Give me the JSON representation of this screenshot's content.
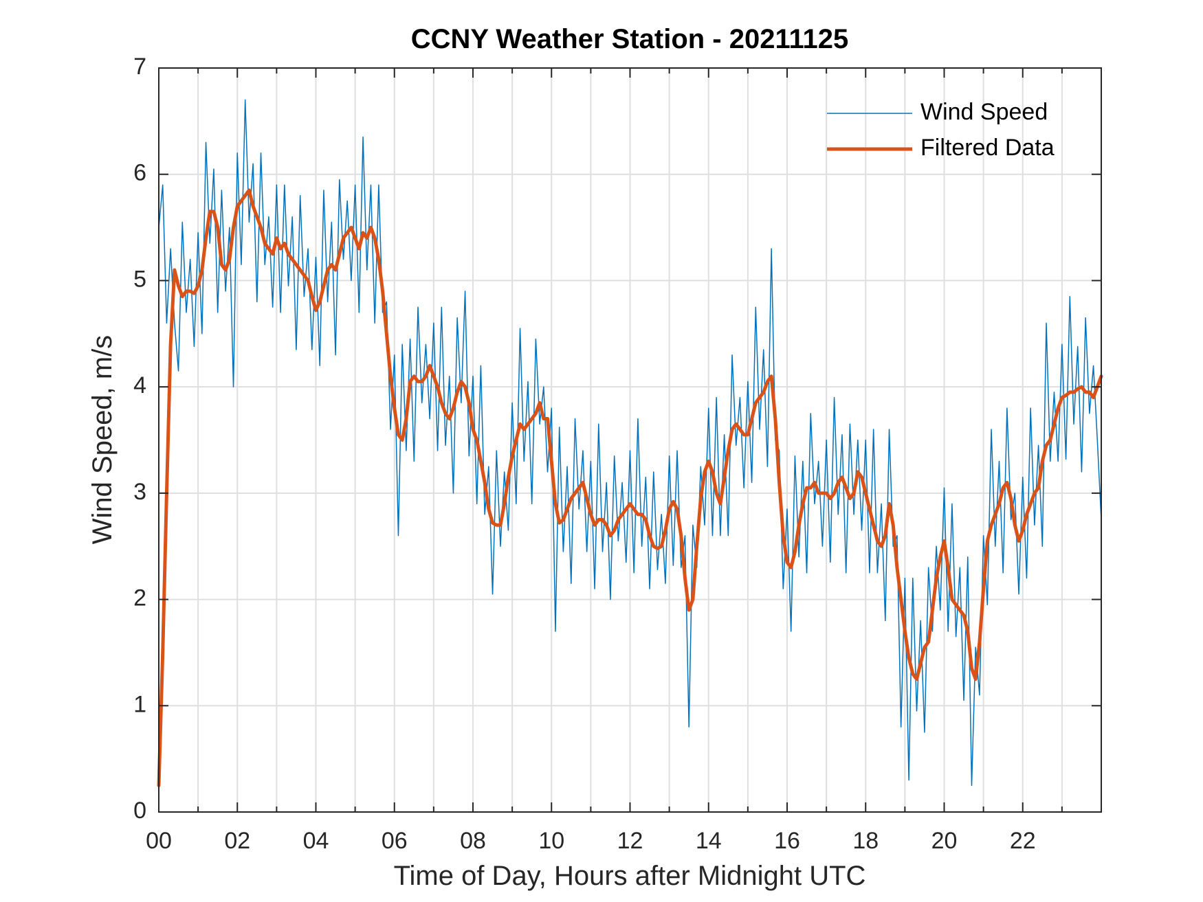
{
  "chart_data": {
    "type": "line",
    "title": "CCNY Weather Station - 20211125",
    "xlabel": "Time of Day, Hours after Midnight UTC",
    "ylabel": "Wind Speed, m/s",
    "x": [
      0,
      0.1,
      0.2,
      0.3,
      0.4,
      0.5,
      0.6,
      0.7,
      0.8,
      0.9,
      1,
      1.1,
      1.2,
      1.3,
      1.4,
      1.5,
      1.6,
      1.7,
      1.8,
      1.9,
      2,
      2.1,
      2.2,
      2.3,
      2.4,
      2.5,
      2.6,
      2.7,
      2.8,
      2.9,
      3,
      3.1,
      3.2,
      3.3,
      3.4,
      3.5,
      3.6,
      3.7,
      3.8,
      3.9,
      4,
      4.1,
      4.2,
      4.3,
      4.4,
      4.5,
      4.6,
      4.7,
      4.8,
      4.9,
      5,
      5.1,
      5.2,
      5.3,
      5.4,
      5.5,
      5.6,
      5.7,
      5.8,
      5.9,
      6,
      6.1,
      6.2,
      6.3,
      6.4,
      6.5,
      6.6,
      6.7,
      6.8,
      6.9,
      7,
      7.1,
      7.2,
      7.3,
      7.4,
      7.5,
      7.6,
      7.7,
      7.8,
      7.9,
      8,
      8.1,
      8.2,
      8.3,
      8.4,
      8.5,
      8.6,
      8.7,
      8.8,
      8.9,
      9,
      9.1,
      9.2,
      9.3,
      9.4,
      9.5,
      9.6,
      9.7,
      9.8,
      9.9,
      10,
      10.1,
      10.2,
      10.3,
      10.4,
      10.5,
      10.6,
      10.7,
      10.8,
      10.9,
      11,
      11.1,
      11.2,
      11.3,
      11.4,
      11.5,
      11.6,
      11.7,
      11.8,
      11.9,
      12,
      12.1,
      12.2,
      12.3,
      12.4,
      12.5,
      12.6,
      12.7,
      12.8,
      12.9,
      13,
      13.1,
      13.2,
      13.3,
      13.4,
      13.5,
      13.6,
      13.7,
      13.8,
      13.9,
      14,
      14.1,
      14.2,
      14.3,
      14.4,
      14.5,
      14.6,
      14.7,
      14.8,
      14.9,
      15,
      15.1,
      15.2,
      15.3,
      15.4,
      15.5,
      15.6,
      15.7,
      15.8,
      15.9,
      16,
      16.1,
      16.2,
      16.3,
      16.4,
      16.5,
      16.6,
      16.7,
      16.8,
      16.9,
      17,
      17.1,
      17.2,
      17.3,
      17.4,
      17.5,
      17.6,
      17.7,
      17.8,
      17.9,
      18,
      18.1,
      18.2,
      18.3,
      18.4,
      18.5,
      18.6,
      18.7,
      18.8,
      18.9,
      19,
      19.1,
      19.2,
      19.3,
      19.4,
      19.5,
      19.6,
      19.7,
      19.8,
      19.9,
      20,
      20.1,
      20.2,
      20.3,
      20.4,
      20.5,
      20.6,
      20.7,
      20.8,
      20.9,
      21,
      21.1,
      21.2,
      21.3,
      21.4,
      21.5,
      21.6,
      21.7,
      21.8,
      21.9,
      22,
      22.1,
      22.2,
      22.3,
      22.4,
      22.5,
      22.6,
      22.7,
      22.8,
      22.9,
      23,
      23.1,
      23.2,
      23.3,
      23.4,
      23.5,
      23.6,
      23.7,
      23.8,
      23.9,
      24
    ],
    "series": [
      {
        "name": "Wind Speed",
        "color": "#0072bd",
        "width": 1.5,
        "values": [
          5.5,
          5.9,
          4.6,
          5.3,
          4.6,
          4.15,
          5.55,
          4.7,
          5.2,
          4.38,
          5.45,
          4.5,
          6.3,
          5.35,
          6.05,
          4.7,
          5.85,
          4.9,
          5.5,
          4.0,
          6.2,
          5.15,
          6.7,
          5.55,
          6.1,
          4.8,
          6.2,
          5.15,
          5.6,
          4.75,
          5.9,
          4.7,
          5.9,
          4.95,
          5.6,
          4.35,
          5.8,
          4.85,
          5.3,
          4.35,
          5.22,
          4.2,
          5.85,
          4.8,
          5.55,
          4.3,
          5.95,
          5.2,
          5.75,
          5.0,
          5.9,
          4.7,
          6.35,
          5.1,
          5.9,
          4.6,
          5.9,
          4.7,
          4.8,
          3.6,
          4.3,
          2.6,
          4.4,
          3.4,
          4.45,
          3.3,
          4.75,
          3.85,
          4.4,
          3.7,
          4.6,
          3.4,
          4.75,
          3.45,
          4.1,
          3.0,
          4.65,
          3.85,
          4.9,
          3.35,
          4.1,
          2.9,
          4.2,
          2.8,
          3.25,
          2.05,
          3.4,
          2.5,
          3.2,
          2.65,
          3.85,
          2.9,
          4.55,
          3.3,
          4.05,
          2.9,
          4.45,
          3.65,
          4.0,
          3.2,
          3.8,
          1.7,
          3.62,
          2.45,
          3.25,
          2.15,
          3.7,
          2.85,
          3.4,
          2.45,
          3.3,
          2.1,
          3.65,
          2.45,
          3.1,
          2.0,
          3.35,
          2.55,
          3.1,
          2.35,
          3.4,
          2.25,
          3.7,
          2.5,
          3.15,
          2.1,
          3.2,
          2.28,
          2.8,
          2.15,
          3.35,
          2.32,
          3.4,
          2.3,
          2.6,
          0.8,
          2.7,
          2.3,
          3.25,
          2.7,
          3.8,
          2.6,
          3.9,
          2.6,
          3.55,
          2.6,
          4.3,
          3.45,
          3.9,
          3.05,
          4.05,
          3.1,
          4.75,
          3.6,
          4.35,
          3.25,
          5.3,
          3.5,
          3.4,
          2.1,
          2.85,
          1.7,
          3.35,
          2.4,
          3.3,
          2.25,
          3.75,
          2.9,
          3.3,
          2.5,
          3.5,
          2.35,
          3.9,
          2.8,
          3.55,
          2.25,
          3.65,
          2.8,
          3.5,
          2.65,
          3.5,
          2.25,
          3.6,
          2.25,
          2.9,
          1.8,
          3.6,
          2.5,
          2.6,
          0.8,
          2.2,
          0.3,
          2.2,
          0.95,
          1.8,
          0.75,
          2.3,
          1.7,
          2.5,
          1.9,
          3.05,
          1.7,
          2.9,
          1.65,
          2.3,
          1.05,
          2.4,
          0.25,
          1.55,
          1.1,
          2.6,
          1.95,
          3.6,
          2.5,
          3.3,
          2.25,
          3.8,
          2.75,
          3.0,
          2.05,
          3.15,
          2.2,
          3.8,
          2.7,
          3.45,
          2.5,
          4.6,
          3.3,
          3.95,
          3.3,
          4.4,
          3.32,
          4.85,
          3.65,
          4.38,
          3.2,
          4.65,
          3.75,
          4.2,
          3.5,
          2.75
        ]
      },
      {
        "name": "Filtered Data",
        "color": "#d95319",
        "width": 5,
        "values": [
          0.25,
          1.5,
          3.0,
          4.4,
          5.1,
          4.95,
          4.85,
          4.9,
          4.9,
          4.88,
          4.95,
          5.1,
          5.4,
          5.65,
          5.65,
          5.5,
          5.15,
          5.1,
          5.2,
          5.5,
          5.7,
          5.75,
          5.8,
          5.85,
          5.7,
          5.6,
          5.5,
          5.35,
          5.3,
          5.25,
          5.4,
          5.3,
          5.35,
          5.25,
          5.2,
          5.15,
          5.1,
          5.05,
          5.0,
          4.85,
          4.72,
          4.8,
          4.95,
          5.1,
          5.15,
          5.1,
          5.25,
          5.4,
          5.45,
          5.5,
          5.4,
          5.3,
          5.45,
          5.4,
          5.5,
          5.4,
          5.2,
          4.9,
          4.5,
          4.1,
          3.8,
          3.55,
          3.5,
          3.7,
          4.05,
          4.1,
          4.05,
          4.05,
          4.1,
          4.2,
          4.1,
          4.0,
          3.85,
          3.75,
          3.7,
          3.8,
          3.95,
          4.05,
          4.0,
          3.85,
          3.6,
          3.5,
          3.3,
          3.1,
          2.85,
          2.72,
          2.7,
          2.7,
          2.9,
          3.15,
          3.35,
          3.5,
          3.65,
          3.6,
          3.65,
          3.7,
          3.75,
          3.85,
          3.7,
          3.7,
          3.3,
          2.9,
          2.72,
          2.75,
          2.85,
          2.95,
          3.0,
          3.05,
          3.1,
          2.95,
          2.8,
          2.7,
          2.75,
          2.75,
          2.7,
          2.6,
          2.65,
          2.75,
          2.8,
          2.85,
          2.9,
          2.85,
          2.8,
          2.8,
          2.75,
          2.6,
          2.5,
          2.48,
          2.5,
          2.65,
          2.85,
          2.92,
          2.85,
          2.6,
          2.2,
          1.9,
          2.0,
          2.5,
          2.95,
          3.2,
          3.3,
          3.2,
          3.0,
          2.9,
          3.15,
          3.4,
          3.6,
          3.65,
          3.6,
          3.55,
          3.55,
          3.7,
          3.85,
          3.9,
          3.95,
          4.05,
          4.1,
          3.7,
          3.1,
          2.6,
          2.35,
          2.3,
          2.45,
          2.7,
          2.9,
          3.05,
          3.05,
          3.1,
          3.0,
          3.0,
          3.0,
          2.95,
          3.0,
          3.1,
          3.15,
          3.05,
          2.95,
          3.0,
          3.2,
          3.15,
          3.0,
          2.85,
          2.7,
          2.55,
          2.5,
          2.6,
          2.9,
          2.7,
          2.3,
          2.0,
          1.7,
          1.45,
          1.3,
          1.25,
          1.4,
          1.55,
          1.6,
          1.9,
          2.2,
          2.4,
          2.55,
          2.3,
          2.0,
          1.95,
          1.9,
          1.85,
          1.7,
          1.35,
          1.25,
          1.6,
          2.1,
          2.55,
          2.7,
          2.8,
          2.9,
          3.05,
          3.1,
          2.95,
          2.7,
          2.55,
          2.65,
          2.8,
          2.9,
          3.0,
          3.05,
          3.3,
          3.45,
          3.5,
          3.65,
          3.8,
          3.9,
          3.92,
          3.95,
          3.95,
          3.98,
          4.0,
          3.95,
          3.95,
          3.9,
          4.0,
          4.1
        ]
      }
    ],
    "xlim": [
      0,
      24
    ],
    "xticks": [
      {
        "value": 0,
        "label": "00"
      },
      {
        "value": 2,
        "label": "02"
      },
      {
        "value": 4,
        "label": "04"
      },
      {
        "value": 6,
        "label": "06"
      },
      {
        "value": 8,
        "label": "08"
      },
      10,
      12,
      14,
      16,
      18,
      20,
      22
    ],
    "xminorticks": [
      1,
      3,
      5,
      7,
      9,
      11,
      13,
      15,
      17,
      19,
      21,
      23
    ],
    "ylim": [
      0,
      7
    ],
    "yticks": [
      0,
      1,
      2,
      3,
      4,
      5,
      6,
      7
    ],
    "grid": true,
    "minor_grid": true,
    "legend": "northeast"
  }
}
